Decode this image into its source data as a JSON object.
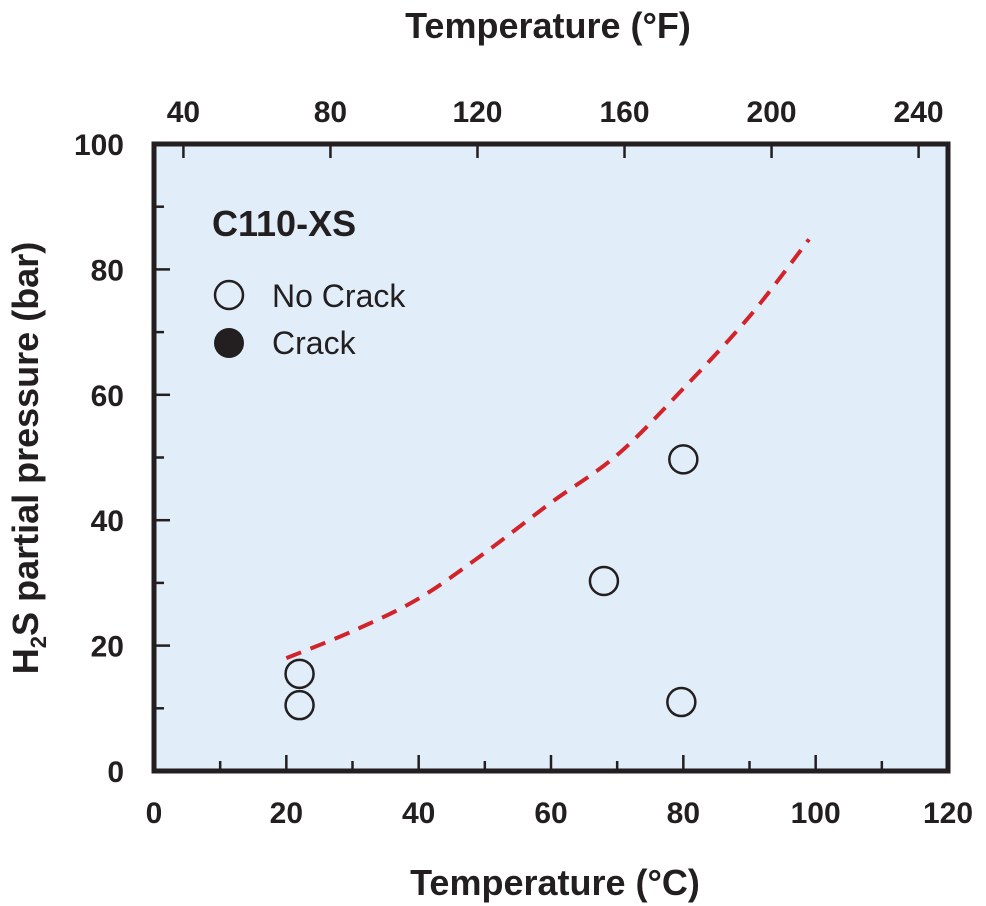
{
  "chart_data": {
    "type": "scatter",
    "title": "",
    "xlabel": "Temperature (°C)",
    "x2label": "Temperature (°F)",
    "ylabel_prefix": "H",
    "ylabel_sub": "2",
    "ylabel_rest": "S partial pressure (bar)",
    "xlim": [
      0,
      120
    ],
    "ylim": [
      0,
      100
    ],
    "x2lim": [
      32,
      248
    ],
    "xticks": [
      "0",
      "20",
      "40",
      "60",
      "80",
      "100",
      "120"
    ],
    "yticks": [
      "0",
      "20",
      "40",
      "60",
      "80",
      "100"
    ],
    "x2ticks": [
      "40",
      "80",
      "120",
      "160",
      "200",
      "240"
    ],
    "panel_label": "C110-XS",
    "legend_position": "top-left",
    "grid": false,
    "background_color": "#e1edf8",
    "curve_color": "#d2232a",
    "marker_color": "#231f20",
    "series": [
      {
        "name": "No Crack",
        "marker": "open-circle",
        "points": [
          {
            "x": 22,
            "y": 15.5
          },
          {
            "x": 22,
            "y": 10.5
          },
          {
            "x": 68,
            "y": 30.3
          },
          {
            "x": 80,
            "y": 49.7
          },
          {
            "x": 79.7,
            "y": 11
          }
        ]
      },
      {
        "name": "Crack",
        "marker": "filled-circle",
        "points": []
      }
    ],
    "curve": {
      "style": "dashed",
      "points": [
        {
          "x": 20,
          "y": 18
        },
        {
          "x": 30,
          "y": 22.3
        },
        {
          "x": 40,
          "y": 27.5
        },
        {
          "x": 50,
          "y": 34.8
        },
        {
          "x": 60,
          "y": 42.8
        },
        {
          "x": 70,
          "y": 50.4
        },
        {
          "x": 80,
          "y": 61
        },
        {
          "x": 90,
          "y": 72.5
        },
        {
          "x": 99,
          "y": 84.8
        }
      ]
    }
  }
}
